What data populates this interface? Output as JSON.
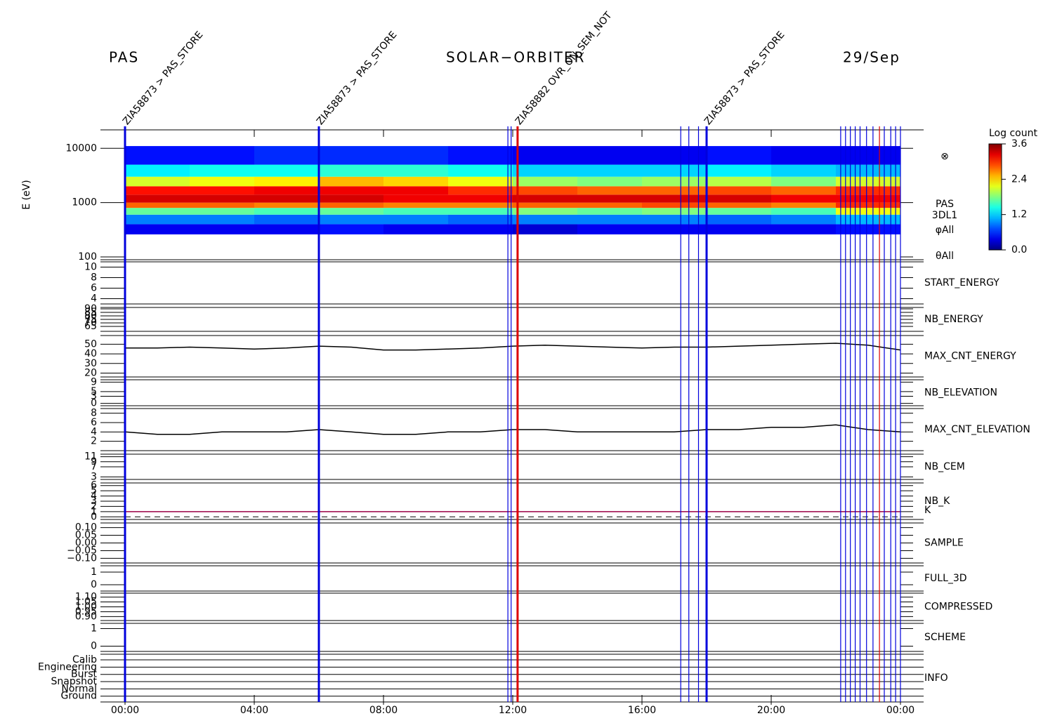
{
  "header": {
    "instrument": "PAS",
    "mission": "SOLAR−ORBITER",
    "date": "29/Sep"
  },
  "time_axis": {
    "xlim": [
      0,
      24
    ],
    "xticks": [
      {
        "value": 0,
        "label": "00:00"
      },
      {
        "value": 4,
        "label": "04:00"
      },
      {
        "value": 8,
        "label": "08:00"
      },
      {
        "value": 12,
        "label": "12:00"
      },
      {
        "value": 16,
        "label": "16:00"
      },
      {
        "value": 20,
        "label": "20:00"
      },
      {
        "value": 24,
        "label": "00:00"
      }
    ]
  },
  "events": [
    {
      "x": 0,
      "color": "#0000dd",
      "label": "ZIA58873 > PAS_STORE"
    },
    {
      "x": 6,
      "color": "#0000dd",
      "label": "ZIA58873 > PAS_STORE"
    },
    {
      "x": 11.85,
      "color": "#0000dd"
    },
    {
      "x": 11.95,
      "color": "#0000dd"
    },
    {
      "x": 12.15,
      "color": "#dd0000",
      "label": "ZIA58882 OVR_ON_SEM_NOT"
    },
    {
      "x": 17.2,
      "color": "#0000dd"
    },
    {
      "x": 17.45,
      "color": "#0000dd"
    },
    {
      "x": 17.75,
      "color": "#0000dd"
    },
    {
      "x": 18,
      "color": "#0000dd",
      "label": "ZIA58873 > PAS_STORE"
    },
    {
      "x": 22.15,
      "color": "#0000dd"
    },
    {
      "x": 22.3,
      "color": "#0000dd"
    },
    {
      "x": 22.45,
      "color": "#0000dd"
    },
    {
      "x": 22.6,
      "color": "#0000dd"
    },
    {
      "x": 22.75,
      "color": "#0000dd"
    },
    {
      "x": 22.95,
      "color": "#0000dd"
    },
    {
      "x": 23.15,
      "color": "#0000dd"
    },
    {
      "x": 23.35,
      "color": "#dd0000"
    },
    {
      "x": 23.5,
      "color": "#0000dd"
    },
    {
      "x": 23.7,
      "color": "#0000dd"
    },
    {
      "x": 23.85,
      "color": "#0000dd"
    },
    {
      "x": 24,
      "color": "#0000dd"
    }
  ],
  "chart_data": [
    {
      "type": "heatmap",
      "ylabel": "E (eV)",
      "log": true,
      "ylim": [
        100,
        20000
      ],
      "yticks": [
        100,
        1000,
        10000
      ],
      "x": [
        0,
        2,
        4,
        6,
        8,
        10,
        12,
        14,
        16,
        18,
        20,
        22,
        24
      ],
      "y": [
        260,
        400,
        600,
        800,
        1000,
        1400,
        2000,
        3000,
        5000,
        11000
      ],
      "values": [
        [
          0.4,
          0.4,
          0.4,
          0.5,
          0.4,
          0.4,
          0.3,
          0.4,
          0.4,
          0.4,
          0.4,
          0.5
        ],
        [
          0.9,
          0.9,
          0.8,
          0.9,
          0.9,
          0.8,
          0.9,
          0.9,
          0.9,
          0.8,
          0.9,
          1.1
        ],
        [
          1.7,
          1.7,
          1.6,
          1.7,
          1.6,
          1.6,
          1.8,
          1.7,
          1.8,
          1.7,
          1.6,
          2.2
        ],
        [
          2.8,
          2.8,
          2.7,
          2.8,
          2.7,
          2.7,
          2.8,
          2.8,
          2.9,
          2.8,
          2.7,
          3.0
        ],
        [
          3.3,
          3.3,
          3.3,
          3.3,
          3.2,
          3.2,
          3.3,
          3.3,
          3.3,
          3.3,
          3.2,
          3.2
        ],
        [
          3.1,
          3.1,
          3.2,
          3.2,
          3.2,
          3.0,
          2.9,
          2.8,
          2.8,
          2.9,
          2.8,
          3.0
        ],
        [
          2.1,
          2.2,
          2.3,
          2.5,
          2.4,
          2.2,
          1.9,
          1.8,
          1.9,
          2.0,
          1.8,
          2.1
        ],
        [
          1.3,
          1.4,
          1.4,
          1.5,
          1.5,
          1.4,
          1.2,
          1.2,
          1.2,
          1.3,
          1.2,
          1.1
        ],
        [
          0.5,
          0.5,
          0.6,
          0.6,
          0.6,
          0.5,
          0.4,
          0.4,
          0.4,
          0.5,
          0.4,
          0.4
        ]
      ],
      "colorbar": {
        "title": "Log count",
        "lim": [
          0,
          3.6
        ],
        "ticks": [
          {
            "value": 0,
            "label": "0.0"
          },
          1.2,
          2.4,
          3.6
        ]
      },
      "side_labels": [
        "⊗",
        "PAS",
        "3DL1",
        "φAll",
        "θAll"
      ]
    },
    {
      "type": "line",
      "label": "START_ENERGY",
      "label_color": "#000000",
      "ylim": [
        3,
        11
      ],
      "yticks": [
        4,
        6,
        8,
        10
      ]
    },
    {
      "type": "line",
      "label": "NB_ENERGY",
      "label_color": "#0000aa",
      "ylim": [
        58,
        92
      ],
      "yticks": [
        65,
        70,
        75,
        80,
        85,
        90
      ]
    },
    {
      "type": "line",
      "label": "MAX_CNT_ENERGY",
      "label_color": "#000000",
      "ylim": [
        16,
        59
      ],
      "yticks": [
        20,
        30,
        40,
        50
      ],
      "x": [
        0,
        1,
        2,
        3,
        4,
        5,
        6,
        7,
        8,
        9,
        10,
        11,
        12,
        13,
        14,
        15,
        16,
        17,
        18,
        19,
        20,
        21,
        22,
        23,
        24
      ],
      "series": [
        {
          "name": "MAX_CNT_ENERGY",
          "color": "#000000",
          "values": [
            46,
            46,
            47,
            46,
            45,
            46,
            48,
            47,
            44,
            44,
            45,
            46,
            48,
            49,
            48,
            47,
            46,
            47,
            47,
            48,
            49,
            50,
            51,
            49,
            44
          ]
        }
      ]
    },
    {
      "type": "line",
      "label": "NB_ELEVATION",
      "label_color": "#0000aa",
      "ylim": [
        -1,
        10
      ],
      "yticks": [
        0,
        3,
        5,
        9
      ]
    },
    {
      "type": "line",
      "label": "MAX_CNT_ELEVATION",
      "label_color": "#000000",
      "ylim": [
        0,
        9
      ],
      "yticks": [
        2,
        4,
        6,
        8
      ],
      "x": [
        0,
        1,
        2,
        3,
        4,
        5,
        6,
        7,
        8,
        9,
        10,
        11,
        12,
        13,
        14,
        15,
        16,
        17,
        18,
        19,
        20,
        21,
        22,
        23,
        24
      ],
      "series": [
        {
          "name": "MAX_CNT_ELEVATION",
          "color": "#000000",
          "values": [
            4,
            3.5,
            3.5,
            4,
            4,
            4,
            4.5,
            4,
            3.5,
            3.5,
            4,
            4,
            4.5,
            4.5,
            4,
            4,
            4,
            4,
            4.5,
            4.5,
            5,
            5,
            5.5,
            4.5,
            4
          ]
        }
      ]
    },
    {
      "type": "line",
      "label": "NB_CEM",
      "label_color": "#0000aa",
      "ylim": [
        2,
        12
      ],
      "yticks": [
        3,
        7,
        9,
        11
      ]
    },
    {
      "type": "line",
      "label": "NB_K",
      "label_color": "#dd0000",
      "ylim": [
        -0.5,
        6.5
      ],
      "yticks": [
        0,
        1,
        2,
        3,
        4,
        5,
        6
      ],
      "x": [
        0,
        24
      ],
      "reference_line": 0,
      "series": [
        {
          "name": "K",
          "color": "#990044",
          "values": [
            1,
            1
          ]
        }
      ]
    },
    {
      "type": "line",
      "label": "SAMPLE",
      "label_color": "#0000aa",
      "ylim": [
        -0.13,
        0.13
      ],
      "yticks": [
        {
          "value": -0.1,
          "label": "−0.10"
        },
        {
          "value": -0.05,
          "label": "−0.05"
        },
        {
          "value": 0,
          "label": "0.00"
        },
        {
          "value": 0.05,
          "label": "0.05"
        },
        {
          "value": 0.1,
          "label": "0.10"
        }
      ]
    },
    {
      "type": "line",
      "label": "FULL_3D",
      "label_color": "#0000aa",
      "ylim": [
        -0.5,
        1.5
      ],
      "yticks": [
        0,
        1
      ]
    },
    {
      "type": "line",
      "label": "COMPRESSED",
      "label_color": "#000000",
      "ylim": [
        0.86,
        1.14
      ],
      "yticks": [
        {
          "value": 0.9,
          "label": "0.90"
        },
        {
          "value": 0.95,
          "label": "0.95"
        },
        {
          "value": 1,
          "label": "1.00"
        },
        {
          "value": 1.05,
          "label": "1.05"
        },
        {
          "value": 1.1,
          "label": "1.10"
        }
      ]
    },
    {
      "type": "line",
      "label": "SCHEME",
      "label_color": "#000000",
      "ylim": [
        -0.3,
        1.3
      ],
      "yticks": [
        0,
        1
      ]
    },
    {
      "type": "category",
      "label": "INFO",
      "label_color": "#000000",
      "categories": [
        "Calib",
        "Engineering",
        "Burst",
        "Snapshot",
        "Normal",
        "Ground"
      ]
    }
  ]
}
